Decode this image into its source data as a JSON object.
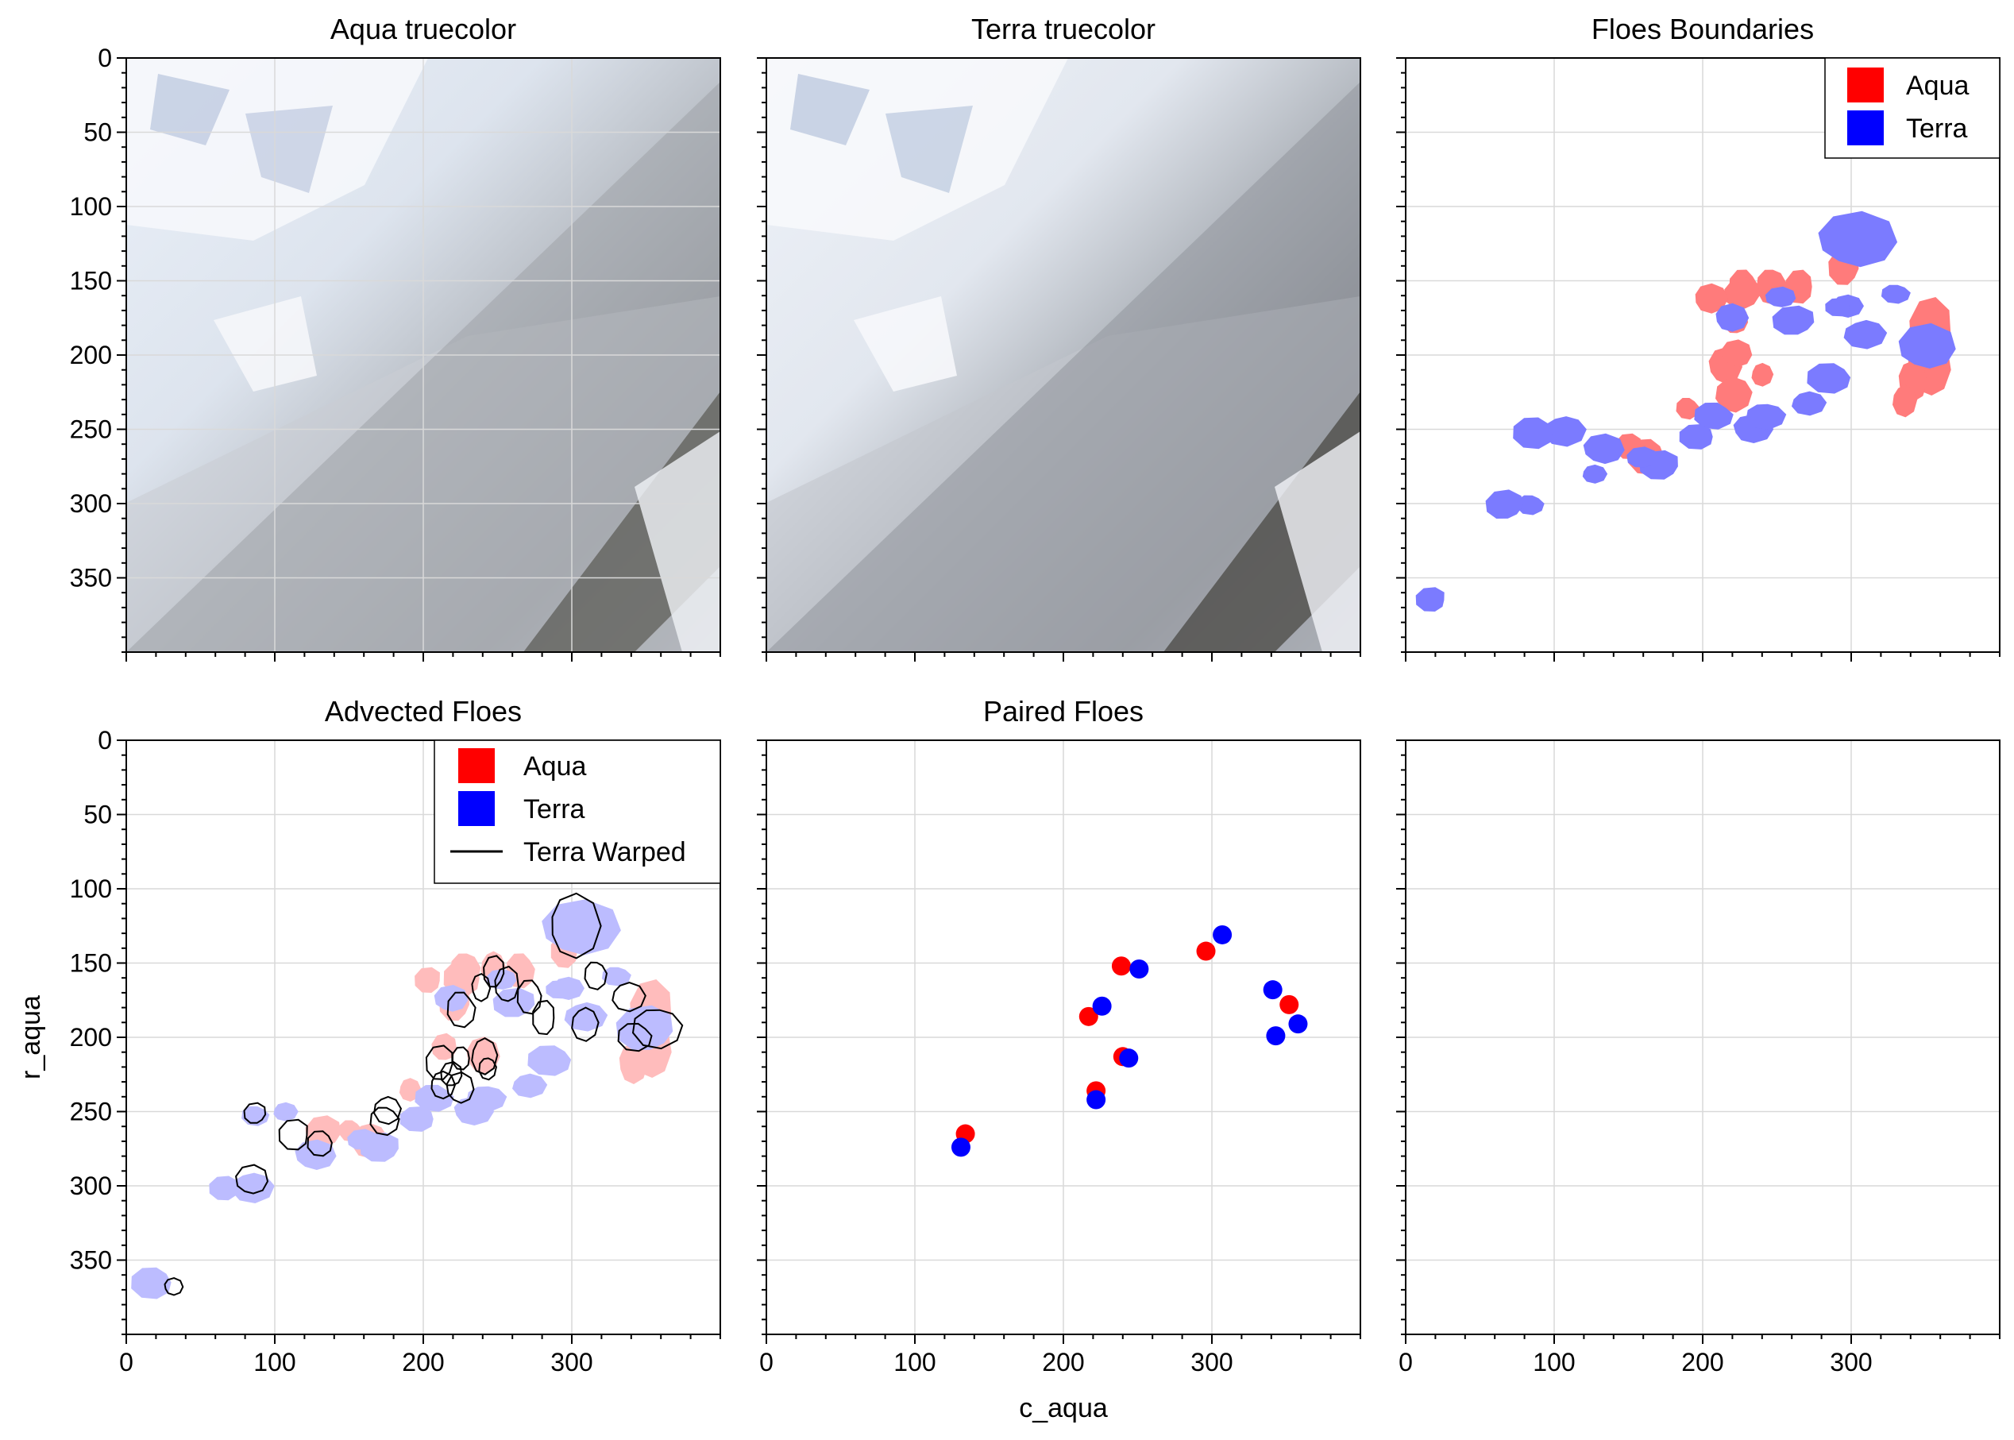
{
  "figure": {
    "xlabel": "c_aqua",
    "ylabel": "r_aqua"
  },
  "colors": {
    "aqua": "#ff0000",
    "terra": "#0000ff",
    "aqua_floe_fill": "#ff7b7b",
    "terra_floe_fill": "#7b7bff",
    "aqua_advected_fill": "#ffbcbc",
    "terra_advected_fill": "#bcbcff",
    "warped_outline": "#000000"
  },
  "panels": [
    {
      "id": "aqua-truecolor",
      "title": "Aqua truecolor",
      "content": "satellite-image"
    },
    {
      "id": "terra-truecolor",
      "title": "Terra truecolor",
      "content": "satellite-image"
    },
    {
      "id": "floes-boundaries",
      "title": "Floes Boundaries",
      "content": "floe-shapes",
      "legend": {
        "placement": "top-right",
        "entries": [
          {
            "label": "Aqua",
            "color": "#ff0000"
          },
          {
            "label": "Terra",
            "color": "#0000ff"
          }
        ]
      }
    },
    {
      "id": "advected-floes",
      "title": "Advected Floes",
      "content": "floe-shapes-with-outlines",
      "legend": {
        "placement": "top-right",
        "entries": [
          {
            "label": "Aqua",
            "color": "#ff0000"
          },
          {
            "label": "Terra",
            "color": "#0000ff"
          },
          {
            "label": "Terra Warped",
            "color": "#000000",
            "kind": "line"
          }
        ]
      }
    },
    {
      "id": "paired-floes",
      "title": "Paired Floes",
      "content": "scatter"
    },
    {
      "id": "empty-panel",
      "title": "",
      "content": "empty"
    }
  ],
  "axes": {
    "x_ticks": [
      "0",
      "100",
      "200",
      "300"
    ],
    "y_ticks": [
      "0",
      "50",
      "100",
      "150",
      "200",
      "250",
      "300",
      "350"
    ]
  },
  "chart_data": [
    {
      "type": "scatter",
      "panel": "paired-floes",
      "title": "Paired Floes",
      "xlabel": "c_aqua",
      "ylabel": "r_aqua",
      "xlim": [
        0,
        400
      ],
      "ylim": [
        400,
        0
      ],
      "grid": true,
      "series": [
        {
          "color": "#ff0000",
          "points": [
            [
              134,
              265
            ],
            [
              222,
              236
            ],
            [
              217,
              186
            ],
            [
              239,
              152
            ],
            [
              240,
              213
            ],
            [
              296,
              142
            ],
            [
              352,
              178
            ]
          ]
        },
        {
          "color": "#0000ff",
          "points": [
            [
              131,
              274
            ],
            [
              222,
              242
            ],
            [
              226,
              179
            ],
            [
              251,
              154
            ],
            [
              244,
              214
            ],
            [
              307,
              131
            ],
            [
              341,
              168
            ],
            [
              343,
              199
            ],
            [
              358,
              191
            ]
          ]
        }
      ]
    },
    {
      "type": "scatter",
      "panel": "floes-boundaries",
      "title": "Floes Boundaries",
      "xlim": [
        0,
        400
      ],
      "ylim": [
        400,
        0
      ],
      "grid": true,
      "legend": "top-right",
      "series": [
        {
          "name": "Aqua",
          "color": "#ff0000",
          "marker": "floe",
          "points": [
            [
              354,
              185
            ],
            [
              352,
              210
            ],
            [
              340,
              218
            ],
            [
              335,
              230
            ],
            [
              246,
              152
            ],
            [
              228,
              153
            ],
            [
              266,
              154
            ],
            [
              296,
              142
            ],
            [
              222,
              178
            ],
            [
              214,
              208
            ],
            [
              239,
              213
            ],
            [
              220,
              225
            ],
            [
              190,
              235
            ],
            [
              163,
              268
            ],
            [
              151,
              262
            ],
            [
              227,
              160
            ],
            [
              222,
              200
            ],
            [
              204,
              162
            ]
          ]
        },
        {
          "name": "Terra",
          "color": "#0000ff",
          "marker": "floe",
          "points": [
            [
              302,
              124
            ],
            [
              296,
              167
            ],
            [
              308,
              185
            ],
            [
              330,
              158
            ],
            [
              286,
              215
            ],
            [
              292,
              168
            ],
            [
              262,
              178
            ],
            [
              252,
              162
            ],
            [
              232,
              250
            ],
            [
              270,
              232
            ],
            [
              242,
              240
            ],
            [
              208,
              240
            ],
            [
              197,
              255
            ],
            [
              172,
              275
            ],
            [
              159,
              270
            ],
            [
              132,
              264
            ],
            [
              126,
              280
            ],
            [
              106,
              250
            ],
            [
              84,
              300
            ],
            [
              87,
              252
            ],
            [
              18,
              365
            ],
            [
              67,
              302
            ],
            [
              350,
              196
            ],
            [
              218,
              175
            ]
          ]
        }
      ]
    },
    {
      "type": "scatter",
      "panel": "advected-floes",
      "title": "Advected Floes",
      "ylabel": "r_aqua",
      "xlim": [
        0,
        400
      ],
      "ylim": [
        400,
        0
      ],
      "grid": true,
      "legend": "top-right",
      "series": [
        {
          "name": "Aqua",
          "color": "#ff0000",
          "marker": "floe",
          "points": [
            [
              354,
              185
            ],
            [
              352,
              210
            ],
            [
              340,
              218
            ],
            [
              246,
              152
            ],
            [
              228,
              153
            ],
            [
              266,
              154
            ],
            [
              296,
              142
            ],
            [
              222,
              178
            ],
            [
              214,
              208
            ],
            [
              239,
              213
            ],
            [
              190,
              235
            ],
            [
              163,
              268
            ],
            [
              151,
              262
            ],
            [
              227,
              160
            ],
            [
              204,
              162
            ],
            [
              133,
              265
            ]
          ]
        },
        {
          "name": "Terra",
          "color": "#0000ff",
          "marker": "floe",
          "points": [
            [
              304,
              128
            ],
            [
              296,
              167
            ],
            [
              308,
              185
            ],
            [
              330,
              158
            ],
            [
              286,
              215
            ],
            [
              292,
              168
            ],
            [
              262,
              178
            ],
            [
              252,
              162
            ],
            [
              232,
              250
            ],
            [
              270,
              232
            ],
            [
              242,
              240
            ],
            [
              208,
              240
            ],
            [
              197,
              255
            ],
            [
              172,
              275
            ],
            [
              159,
              270
            ],
            [
              126,
              280
            ],
            [
              106,
              250
            ],
            [
              84,
              300
            ],
            [
              87,
              252
            ],
            [
              18,
              365
            ],
            [
              67,
              302
            ],
            [
              350,
              196
            ],
            [
              218,
              175
            ]
          ]
        },
        {
          "name": "Terra Warped",
          "color": "#000000",
          "marker": "outline",
          "points": [
            [
              300,
              125
            ],
            [
              308,
              190
            ],
            [
              316,
              157
            ],
            [
              272,
              172
            ],
            [
              282,
              187
            ],
            [
              248,
              157
            ],
            [
              256,
              166
            ],
            [
              238,
              167
            ],
            [
              240,
              212
            ],
            [
              243,
              220
            ],
            [
              226,
              180
            ],
            [
              226,
              214
            ],
            [
              212,
              218
            ],
            [
              219,
              226
            ],
            [
              224,
              235
            ],
            [
              212,
              232
            ],
            [
              175,
              248
            ],
            [
              174,
              255
            ],
            [
              131,
              271
            ],
            [
              114,
              266
            ],
            [
              87,
              252
            ],
            [
              84,
              297
            ],
            [
              31,
              368
            ],
            [
              337,
              172
            ],
            [
              357,
              192
            ],
            [
              343,
              199
            ]
          ]
        }
      ]
    }
  ]
}
